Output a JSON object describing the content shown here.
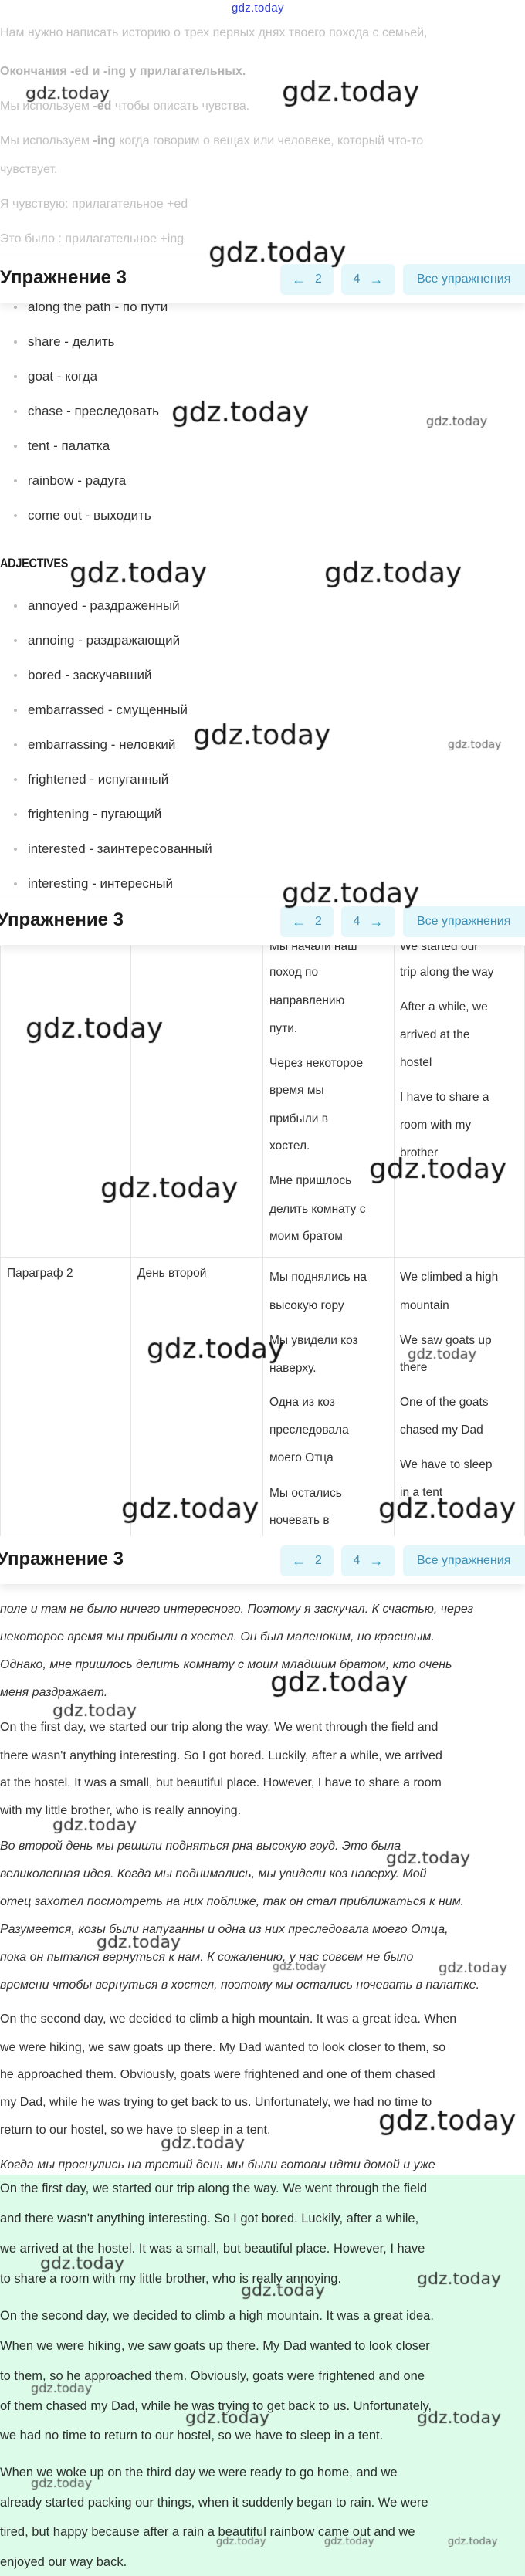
{
  "logo": "gdz.today",
  "watermark": "gdz.today",
  "intro": {
    "lines": [
      {
        "segs": [
          {
            "t": "Нам нужно написать историю о трех первых днях твоего похода с семьей,"
          }
        ]
      },
      {
        "segs": [
          {
            "t": "Окончания -ed и -ing у прилагательных.",
            "b": true
          }
        ]
      },
      {
        "segs": [
          {
            "t": "Мы используем "
          },
          {
            "t": "-ed",
            "b": true
          },
          {
            "t": " чтобы описать чувства."
          }
        ]
      },
      {
        "segs": [
          {
            "t": "Мы используем "
          },
          {
            "t": "-ing",
            "b": true
          },
          {
            "t": " когда говорим о вещах или человеке, который что-то"
          }
        ]
      },
      {
        "segs": [
          {
            "t": "чувствует."
          }
        ]
      },
      {
        "segs": [
          {
            "t": "Я чувствую: прилагательное +ed"
          }
        ]
      },
      {
        "segs": [
          {
            "t": "Это было : прилагательное +ing"
          }
        ]
      }
    ]
  },
  "exercise_nav": {
    "title": "Упражнение 3",
    "prev_label": "2",
    "next_label": "4",
    "all_label": "Все упражнения",
    "prev_icon": "arrow-left-icon",
    "next_icon": "arrow-right-icon",
    "accent": "#3d8db5",
    "button_bg": "#e4f8fc"
  },
  "vocab": {
    "items": [
      "along the path - по пути",
      "share - делить",
      "goat - когда",
      "chase - преследовать",
      "tent - палатка",
      "rainbow - радуга",
      "come out - выходить"
    ]
  },
  "adjectives": {
    "heading": "ADJECTIVES",
    "items": [
      "annoyed - раздраженный",
      "annoing - раздражающий",
      "bored - заскучавший",
      "embarrassed - смущенный",
      "embarrassing - неловкий",
      "frightened - испуганный",
      "frightening - пугающий",
      "interested - заинтересованный",
      "interesting - интересный"
    ]
  },
  "table": {
    "rows": [
      {
        "cells": [
          [],
          [],
          [
            "Мы начали наш",
            "поход по",
            "направлению",
            "пути.",
            "Через некоторое",
            "время мы",
            "прибыли в",
            "хостел.",
            "Мне пришлось",
            "делить комнату с",
            "моим братом"
          ],
          [
            "We started our",
            "trip along the way",
            "After a while, we",
            "arrived at the",
            "hostel",
            "I have to share a",
            "room with my",
            "brother"
          ]
        ]
      },
      {
        "cells": [
          [
            "Параграф 2"
          ],
          [
            "День второй"
          ],
          [
            "Мы поднялись на",
            "высокую гору",
            "Мы увидели коз",
            "наверху.",
            "Одна из коз",
            "преследовала",
            "моего Отца",
            "Мы остались",
            "ночевать в"
          ],
          [
            "We climbed a high",
            "mountain",
            "We saw goats up",
            "there",
            "One of the goats",
            "chased my Dad",
            "We have to sleep",
            "in a tent"
          ]
        ]
      }
    ]
  },
  "story": {
    "lines": [
      {
        "t": "поле и там не было ничего интересного. Поэтому я заскучал. К счастью, через",
        "lang": "ru"
      },
      {
        "t": "некоторое время мы прибыли в хостел. Он был маленоким, но красивым.",
        "lang": "ru"
      },
      {
        "t": "Однако, мне пришлось делить комнату с моим младшим братом, кто очень",
        "lang": "ru"
      },
      {
        "t": "меня раздражает.",
        "lang": "ru"
      },
      {
        "t": "On the first day, we started our trip along the way. We went through the field and",
        "lang": "en"
      },
      {
        "t": "there wasn't anything interesting. So I got bored. Luckily, after a while, we arrived",
        "lang": "en"
      },
      {
        "t": "at the hostel. It was a small, but beautiful place. However, I have to share a room",
        "lang": "en"
      },
      {
        "t": "with my little brother, who is really annoying.",
        "lang": "en"
      },
      {
        "t": "Во второй день мы решили подняться рна высокую гоуд. Это была",
        "lang": "ru"
      },
      {
        "t": "великолепная идея. Когда мы поднимались, мы увидели коз наверху. Мой",
        "lang": "ru"
      },
      {
        "t": "отец захотел посмотреть на них поближе, так он стал приближаться к ним.",
        "lang": "ru"
      },
      {
        "t": "Разумеется, козы были напуганны и одна из них преследовала моего Отца,",
        "lang": "ru"
      },
      {
        "t": "пока он пытался вернуться к нам. К сожалению, у нас совсем не было",
        "lang": "ru"
      },
      {
        "t": "времени чтобы вернуться в хостел, поэтому мы остались ночевать в палатке.",
        "lang": "ru"
      },
      {
        "t": "On the second day, we decided to climb a high mountain. It was a great idea. When",
        "lang": "en"
      },
      {
        "t": "we were hiking, we saw goats up there. My Dad wanted to look closer to them, so",
        "lang": "en"
      },
      {
        "t": "he approached them. Obviously, goats were frightened and one of them chased",
        "lang": "en"
      },
      {
        "t": "my Dad, while he was trying to get back to us. Unfortunately, we had no time to",
        "lang": "en"
      },
      {
        "t": "return to our hostel, so we have to sleep in a tent.",
        "lang": "en"
      },
      {
        "t": "Когда мы проснулись на третий день мы были готовы идти домой и уже",
        "lang": "ru"
      }
    ]
  },
  "answer": {
    "background": "#dcfce9",
    "lines": [
      "On the first day, we started our trip along the way. We went through the field",
      "and there wasn't anything interesting. So I got bored. Luckily, after a while,",
      "we arrived at the hostel. It was a small, but beautiful place. However, I have",
      "to share a room with my little brother, who is really annoying.",
      "On the second day, we decided to climb a high mountain. It was a great idea.",
      "When we were hiking, we saw goats up there. My Dad wanted to look closer",
      "to them, so he approached them. Obviously, goats were frightened and one",
      "of them chased my Dad, while he was trying to get back to us. Unfortunately,",
      "we had no time to return to our hostel, so we have to sleep in a tent.",
      "When we woke up on the third day we were ready to go home, and we",
      "already started packing our things, when it suddenly began to rain. We were",
      "tired, but happy because after a rain a beautiful rainbow came out and we",
      "enjoyed our way back."
    ]
  }
}
